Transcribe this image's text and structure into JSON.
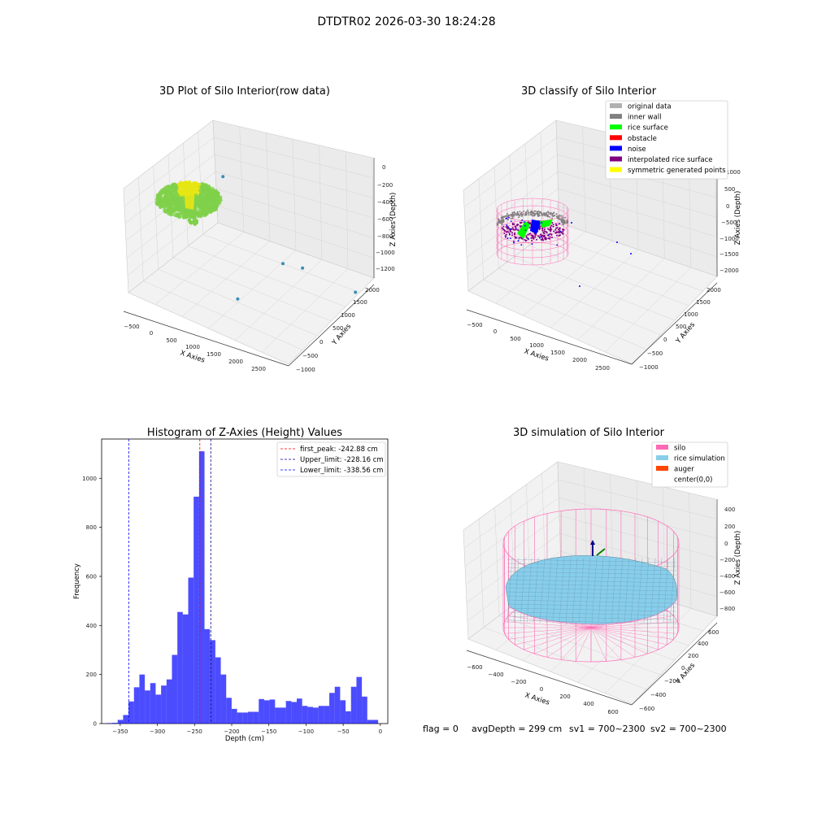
{
  "figure": {
    "title": "DTDTR02 2026-03-30 18:24:28",
    "status": {
      "flag": "flag = 0",
      "avg_depth": "avgDepth = 299 cm",
      "sv1": "sv1 = 700~2300",
      "sv2": "sv2 = 700~2300"
    }
  },
  "chart_data": [
    {
      "type": "scatter",
      "panel": "raw",
      "title": "3D Plot of Silo Interior(row data)",
      "xlabel": "X Axies",
      "ylabel": "Y Axies",
      "zlabel": "Z Axies (Depth)",
      "x_ticks": [
        "−500",
        "0",
        "500",
        "1000",
        "1500",
        "2000",
        "2500"
      ],
      "y_ticks": [
        "−1000",
        "−500",
        "0",
        "500",
        "1000",
        "1500",
        "2000"
      ],
      "z_ticks": [
        "0",
        "−200",
        "−400",
        "−600",
        "−800",
        "−1000",
        "−1200"
      ],
      "colors": {
        "main": "#7fd14a",
        "high": "#e6e614",
        "outlier": "#3a8fb5"
      },
      "outliers": [
        {
          "x": 2300,
          "y": 1600,
          "z": -1250
        },
        {
          "x": 1700,
          "y": 900,
          "z": -1050
        },
        {
          "x": 1500,
          "y": 600,
          "z": -1000
        },
        {
          "x": 1100,
          "y": -200,
          "z": -1200
        },
        {
          "x": 600,
          "y": 200,
          "z": -430
        }
      ]
    },
    {
      "type": "scatter",
      "panel": "classify",
      "title": "3D classify of Silo Interior",
      "xlabel": "X Axies",
      "ylabel": "Y Axies",
      "zlabel": "Z Axies (Depth)",
      "x_ticks": [
        "−500",
        "0",
        "500",
        "1000",
        "1500",
        "2000",
        "2500"
      ],
      "y_ticks": [
        "−1000",
        "−500",
        "0",
        "500",
        "1000",
        "1500",
        "2000"
      ],
      "z_ticks": [
        "1000",
        "500",
        "0",
        "−500",
        "−1000",
        "−1500",
        "−2000"
      ],
      "legend_placement": "top-right",
      "legend": [
        {
          "label": "original data",
          "color": "#b0b0b0"
        },
        {
          "label": "inner wall",
          "color": "#808080"
        },
        {
          "label": "rice surface",
          "color": "#00ff00"
        },
        {
          "label": "obstacle",
          "color": "#ff0000"
        },
        {
          "label": "noise",
          "color": "#0000ff"
        },
        {
          "label": "interpolated rice surface",
          "color": "#800080"
        },
        {
          "label": "symmetric generated points",
          "color": "#ffff00"
        }
      ],
      "wire_color": "#ff69b4"
    },
    {
      "type": "bar",
      "panel": "histogram",
      "title": "Histogram of Z-Axies (Height) Values",
      "xlabel": "Depth (cm)",
      "ylabel": "Frequency",
      "xlim": [
        -375,
        10
      ],
      "ylim": [
        0,
        1160
      ],
      "x_ticks": [
        {
          "v": -350,
          "t": "−350"
        },
        {
          "v": -300,
          "t": "−300"
        },
        {
          "v": -250,
          "t": "−250"
        },
        {
          "v": -200,
          "t": "−200"
        },
        {
          "v": -150,
          "t": "−150"
        },
        {
          "v": -100,
          "t": "−100"
        },
        {
          "v": -50,
          "t": "−50"
        },
        {
          "v": 0,
          "t": "0"
        }
      ],
      "y_ticks": [
        {
          "v": 0,
          "t": "0"
        },
        {
          "v": 200,
          "t": "200"
        },
        {
          "v": 400,
          "t": "400"
        },
        {
          "v": 600,
          "t": "600"
        },
        {
          "v": 800,
          "t": "800"
        },
        {
          "v": 1000,
          "t": "1000"
        }
      ],
      "bar_color": "#0000ff",
      "bin_start": -368,
      "bin_width": 7.3,
      "values": [
        2,
        3,
        15,
        35,
        90,
        148,
        200,
        135,
        165,
        118,
        155,
        180,
        280,
        455,
        445,
        595,
        925,
        1110,
        385,
        340,
        270,
        200,
        105,
        60,
        45,
        45,
        48,
        48,
        100,
        95,
        98,
        65,
        65,
        92,
        88,
        102,
        72,
        68,
        65,
        72,
        72,
        125,
        150,
        95,
        50,
        150,
        190,
        110,
        15,
        15
      ],
      "lines": [
        {
          "label": "first_peak: -242.88 cm",
          "value": -242.88,
          "color": "#ff0000"
        },
        {
          "label": "Upper_limit: -228.16 cm",
          "value": -228.16,
          "color": "#00008b"
        },
        {
          "label": "Lower_limit: -338.56 cm",
          "value": -338.56,
          "color": "#0000ff"
        }
      ],
      "legend_placement": "top-right"
    },
    {
      "type": "surface",
      "panel": "simulation",
      "title": "3D simulation of Silo Interior",
      "xlabel": "X Axies",
      "ylabel": "Y Axies",
      "zlabel": "Z Axies (Depth)",
      "x_ticks": [
        "−600",
        "−400",
        "−200",
        "0",
        "200",
        "400",
        "600"
      ],
      "y_ticks": [
        "−600",
        "−400",
        "−200",
        "0",
        "200",
        "400",
        "600"
      ],
      "z_ticks": [
        "400",
        "200",
        "0",
        "−200",
        "−400",
        "−600",
        "−800"
      ],
      "legend_placement": "top-right",
      "legend": [
        {
          "label": "silo",
          "color": "#ff69b4"
        },
        {
          "label": "rice simulation",
          "color": "#87ceeb"
        },
        {
          "label": "auger",
          "color": "#ff4500"
        },
        {
          "label": "center(0,0)",
          "color": "#ffffff"
        }
      ]
    }
  ]
}
